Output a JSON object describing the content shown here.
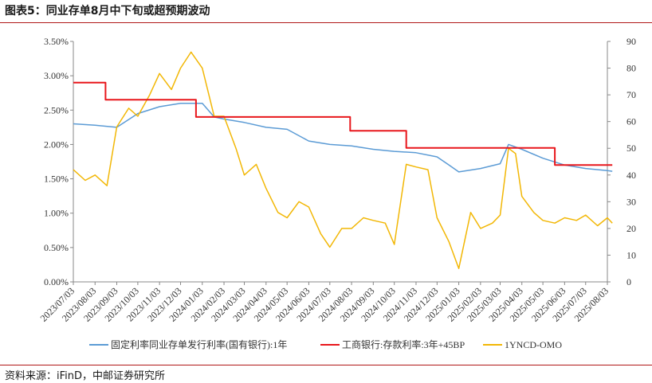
{
  "header": {
    "title": "图表5：同业存单8月中下旬或超预期波动"
  },
  "footer": {
    "source": "资料来源：iFinD，中邮证券研究所"
  },
  "colors": {
    "ncd": "#5b9bd5",
    "icbc": "#e8171c",
    "omo": "#f2b705",
    "rule": "#b01818"
  },
  "chart_data": {
    "type": "line",
    "title": "",
    "grid": false,
    "legend_position": "bottom",
    "x_categories": [
      "2023/07/03",
      "2023/08/03",
      "2023/09/03",
      "2023/10/03",
      "2023/11/03",
      "2023/12/03",
      "2024/01/03",
      "2024/02/03",
      "2024/03/03",
      "2024/04/03",
      "2024/05/03",
      "2024/06/03",
      "2024/07/03",
      "2024/08/03",
      "2024/09/03",
      "2024/10/03",
      "2024/11/03",
      "2024/12/03",
      "2025/01/03",
      "2025/02/03",
      "2025/03/03",
      "2025/04/03",
      "2025/05/03",
      "2025/06/03",
      "2025/07/03",
      "2025/08/03"
    ],
    "y_left": {
      "ticks": [
        "0.00%",
        "0.50%",
        "1.00%",
        "1.50%",
        "2.00%",
        "2.50%",
        "3.00%",
        "3.50%"
      ],
      "min": 0,
      "max": 3.5
    },
    "y_right": {
      "ticks": [
        "0",
        "10",
        "20",
        "30",
        "40",
        "50",
        "60",
        "70",
        "80",
        "90"
      ],
      "min": 0,
      "max": 90
    },
    "series": [
      {
        "name": "固定利率同业存单发行利率(国有银行):1年",
        "axis": "left",
        "x": [
          "2023/07/03",
          "2023/08/03",
          "2023/09/03",
          "2023/10/03",
          "2023/11/03",
          "2023/12/03",
          "2024/01/03",
          "2024/01/20",
          "2024/02/03",
          "2024/03/03",
          "2024/04/03",
          "2024/05/03",
          "2024/06/03",
          "2024/07/03",
          "2024/08/03",
          "2024/09/03",
          "2024/10/03",
          "2024/11/03",
          "2024/12/03",
          "2024/12/20",
          "2025/01/03",
          "2025/02/03",
          "2025/03/03",
          "2025/03/15",
          "2025/04/03",
          "2025/05/03",
          "2025/06/03",
          "2025/07/03",
          "2025/08/03",
          "2025/08/10"
        ],
        "y": [
          2.3,
          2.28,
          2.25,
          2.45,
          2.55,
          2.6,
          2.6,
          2.4,
          2.37,
          2.32,
          2.25,
          2.22,
          2.05,
          2.0,
          1.98,
          1.93,
          1.9,
          1.88,
          1.82,
          1.7,
          1.6,
          1.65,
          1.72,
          2.0,
          1.93,
          1.8,
          1.7,
          1.65,
          1.62,
          1.61
        ]
      },
      {
        "name": "工商银行:存款利率:3年+45BP",
        "axis": "left",
        "x": [
          "2023/07/03",
          "2023/08/18",
          "2023/08/18",
          "2023/12/25",
          "2023/12/25",
          "2024/02/01",
          "2024/02/01",
          "2024/08/01",
          "2024/08/01",
          "2024/10/20",
          "2024/10/20",
          "2025/05/20",
          "2025/05/20",
          "2025/08/10"
        ],
        "y": [
          2.9,
          2.9,
          2.65,
          2.65,
          2.4,
          2.4,
          2.4,
          2.4,
          2.2,
          2.2,
          1.95,
          1.95,
          1.7,
          1.7
        ]
      },
      {
        "name": "1YNCD-OMO",
        "axis": "right",
        "x": [
          "2023/07/03",
          "2023/07/20",
          "2023/08/03",
          "2023/08/20",
          "2023/09/03",
          "2023/09/20",
          "2023/10/03",
          "2023/10/20",
          "2023/11/03",
          "2023/11/20",
          "2023/12/03",
          "2023/12/18",
          "2024/01/03",
          "2024/01/20",
          "2024/02/03",
          "2024/02/20",
          "2024/03/03",
          "2024/03/20",
          "2024/04/03",
          "2024/04/20",
          "2024/05/03",
          "2024/05/20",
          "2024/06/03",
          "2024/06/20",
          "2024/07/03",
          "2024/07/20",
          "2024/08/03",
          "2024/08/20",
          "2024/09/03",
          "2024/09/20",
          "2024/10/03",
          "2024/10/20",
          "2024/11/03",
          "2024/11/20",
          "2024/12/03",
          "2024/12/20",
          "2025/01/03",
          "2025/01/20",
          "2025/02/03",
          "2025/02/20",
          "2025/03/03",
          "2025/03/15",
          "2025/03/25",
          "2025/04/03",
          "2025/04/20",
          "2025/05/03",
          "2025/05/20",
          "2025/06/03",
          "2025/06/20",
          "2025/07/03",
          "2025/07/20",
          "2025/08/03",
          "2025/08/10"
        ],
        "y": [
          42,
          38,
          40,
          36,
          58,
          65,
          62,
          70,
          78,
          72,
          80,
          86,
          80,
          62,
          62,
          50,
          40,
          44,
          35,
          26,
          24,
          30,
          28,
          18,
          13,
          20,
          20,
          24,
          23,
          22,
          14,
          44,
          43,
          42,
          24,
          15,
          5,
          26,
          20,
          22,
          25,
          50,
          48,
          32,
          26,
          23,
          22,
          24,
          23,
          25,
          21,
          24,
          22
        ]
      }
    ]
  }
}
